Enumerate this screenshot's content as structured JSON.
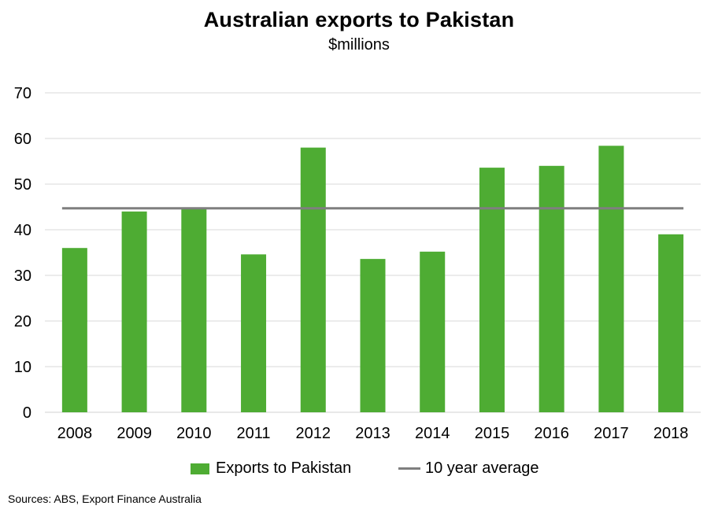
{
  "chart_data": {
    "type": "bar",
    "title": "Australian exports to Pakistan",
    "subtitle": "$millions",
    "categories": [
      "2008",
      "2009",
      "2010",
      "2011",
      "2012",
      "2013",
      "2014",
      "2015",
      "2016",
      "2017",
      "2018"
    ],
    "series": [
      {
        "name": "Exports to Pakistan",
        "type": "bar",
        "values": [
          36,
          44,
          44.8,
          34.6,
          58,
          33.6,
          35.2,
          53.6,
          54,
          58.4,
          39
        ],
        "color": "#4eac33"
      },
      {
        "name": "10 year average",
        "type": "line",
        "values": [
          44.7,
          44.7,
          44.7,
          44.7,
          44.7,
          44.7,
          44.7,
          44.7,
          44.7,
          44.7,
          44.7
        ],
        "color": "#7f7f7f"
      }
    ],
    "ylim": [
      0,
      70
    ],
    "yticks": [
      0,
      10,
      20,
      30,
      40,
      50,
      60,
      70
    ],
    "grid": true,
    "legend_position": "bottom"
  },
  "source_note": "Sources: ABS, Export Finance Australia"
}
